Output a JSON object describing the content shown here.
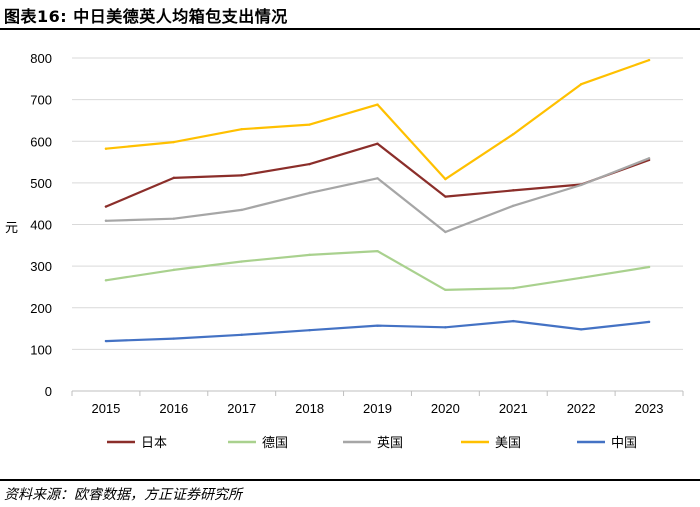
{
  "header": {
    "title": "图表16: 中日美德英人均箱包支出情况"
  },
  "footer": {
    "source": "资料来源：欧睿数据，方正证券研究所"
  },
  "chart_data": {
    "type": "line",
    "title": "图表16: 中日美德英人均箱包支出情况",
    "xlabel": "",
    "ylabel": "元",
    "x": [
      "2015",
      "2016",
      "2017",
      "2018",
      "2019",
      "2020",
      "2021",
      "2022",
      "2023"
    ],
    "ylim": [
      0,
      800
    ],
    "yticks": [
      0,
      100,
      200,
      300,
      400,
      500,
      600,
      700,
      800
    ],
    "grid": true,
    "legend": "bottom",
    "series": [
      {
        "name": "日本",
        "color": "#8B2E2A",
        "values": [
          443,
          512,
          518,
          545,
          594,
          467,
          482,
          496,
          555
        ]
      },
      {
        "name": "德国",
        "color": "#A9D18E",
        "values": [
          266,
          291,
          311,
          327,
          336,
          243,
          247,
          272,
          298
        ]
      },
      {
        "name": "英国",
        "color": "#A6A6A6",
        "values": [
          409,
          414,
          435,
          476,
          511,
          382,
          445,
          495,
          559
        ]
      },
      {
        "name": "美国",
        "color": "#FFC000",
        "values": [
          582,
          598,
          629,
          640,
          688,
          509,
          617,
          737,
          795
        ]
      },
      {
        "name": "中国",
        "color": "#4472C4",
        "values": [
          120,
          126,
          135,
          146,
          157,
          153,
          168,
          148,
          166
        ]
      }
    ]
  }
}
